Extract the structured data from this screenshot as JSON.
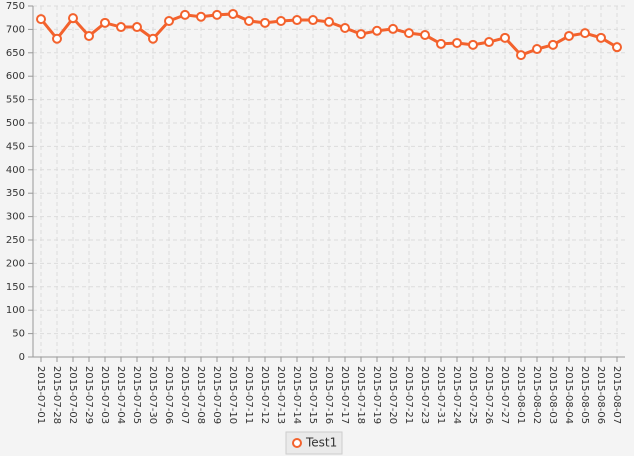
{
  "chart_data": {
    "type": "line",
    "categories": [
      "2015-07-01",
      "2015-07-28",
      "2015-07-02",
      "2015-07-29",
      "2015-07-03",
      "2015-07-04",
      "2015-07-05",
      "2015-07-30",
      "2015-07-06",
      "2015-07-07",
      "2015-07-08",
      "2015-07-09",
      "2015-07-10",
      "2015-07-11",
      "2015-07-12",
      "2015-07-13",
      "2015-07-14",
      "2015-07-15",
      "2015-07-16",
      "2015-07-17",
      "2015-07-18",
      "2015-07-19",
      "2015-07-20",
      "2015-07-21",
      "2015-07-23",
      "2015-07-31",
      "2015-07-24",
      "2015-07-25",
      "2015-07-26",
      "2015-07-27",
      "2015-08-01",
      "2015-08-02",
      "2015-08-03",
      "2015-08-04",
      "2015-08-05",
      "2015-08-06",
      "2015-08-07"
    ],
    "series": [
      {
        "name": "Test1",
        "color": "#f3622d",
        "values": [
          722,
          680,
          724,
          686,
          714,
          705,
          705,
          680,
          718,
          731,
          727,
          731,
          733,
          718,
          714,
          718,
          720,
          720,
          716,
          703,
          690,
          697,
          701,
          692,
          688,
          669,
          671,
          667,
          673,
          682,
          645,
          658,
          667,
          686,
          692,
          682,
          662
        ]
      }
    ],
    "ylim": [
      0,
      750
    ],
    "yticks": [
      0,
      50,
      100,
      150,
      200,
      250,
      300,
      350,
      400,
      450,
      500,
      550,
      600,
      650,
      700,
      750
    ],
    "grid": true
  }
}
